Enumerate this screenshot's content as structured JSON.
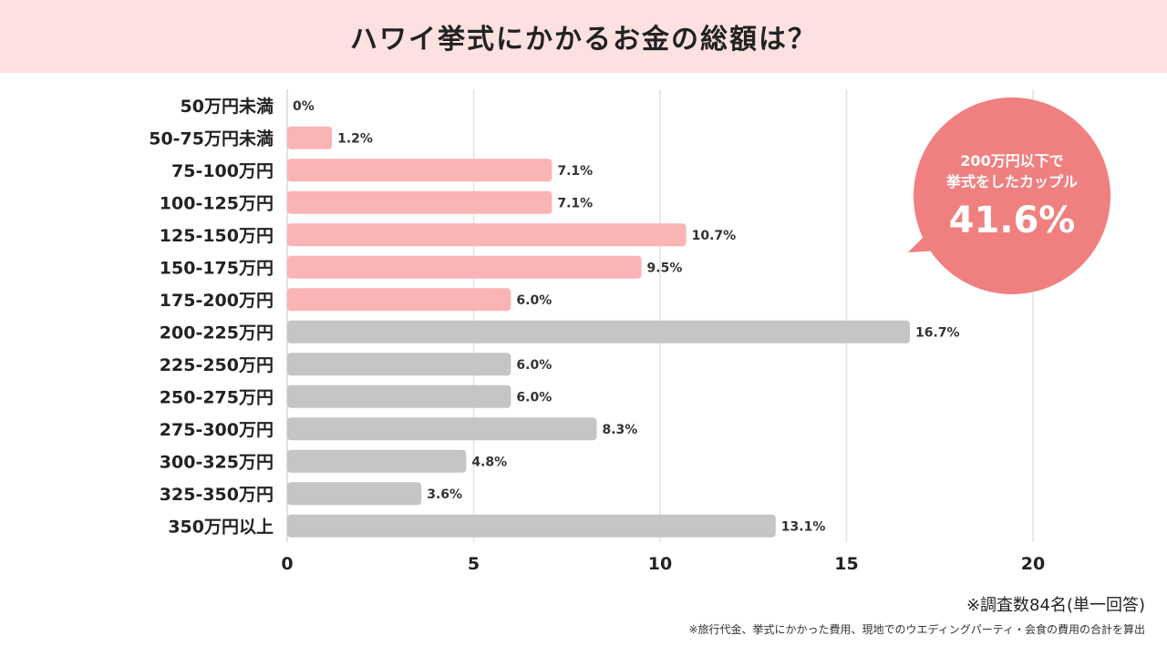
{
  "header": {
    "title": "ハワイ挙式にかかるお金の総額は？"
  },
  "callout": {
    "line1": "200万円以下で",
    "line2": "挙式をしたカップル",
    "percent": "41.6%",
    "color": "#f08080"
  },
  "notes": {
    "sample": "※調査数84名(単一回答)",
    "detail": "※旅行代金、挙式にかかった費用、現地でのウエディングパーティ・会食の費用の合計を算出"
  },
  "colors": {
    "pink": "#fbb4b5",
    "gray": "#c6c4c5",
    "grid": "#e2e2e2"
  },
  "chart_data": {
    "type": "bar",
    "orientation": "horizontal",
    "categories": [
      "50万円未満",
      "50-75万円未満",
      "75-100万円",
      "100-125万円",
      "125-150万円",
      "150-175万円",
      "175-200万円",
      "200-225万円",
      "225-250万円",
      "250-275万円",
      "275-300万円",
      "300-325万円",
      "325-350万円",
      "350万円以上"
    ],
    "values": [
      0,
      1.2,
      7.1,
      7.1,
      10.7,
      9.5,
      6.0,
      16.7,
      6.0,
      6.0,
      8.3,
      4.8,
      3.6,
      13.1
    ],
    "value_labels": [
      "0%",
      "1.2%",
      "7.1%",
      "7.1%",
      "10.7%",
      "9.5%",
      "6.0%",
      "16.7%",
      "6.0%",
      "6.0%",
      "8.3%",
      "4.8%",
      "3.6%",
      "13.1%"
    ],
    "highlight": [
      true,
      true,
      true,
      true,
      true,
      true,
      true,
      false,
      false,
      false,
      false,
      false,
      false,
      false
    ],
    "xlim": [
      0,
      20
    ],
    "xticks": [
      "0",
      "5",
      "10",
      "15",
      "20"
    ],
    "grid": true
  }
}
